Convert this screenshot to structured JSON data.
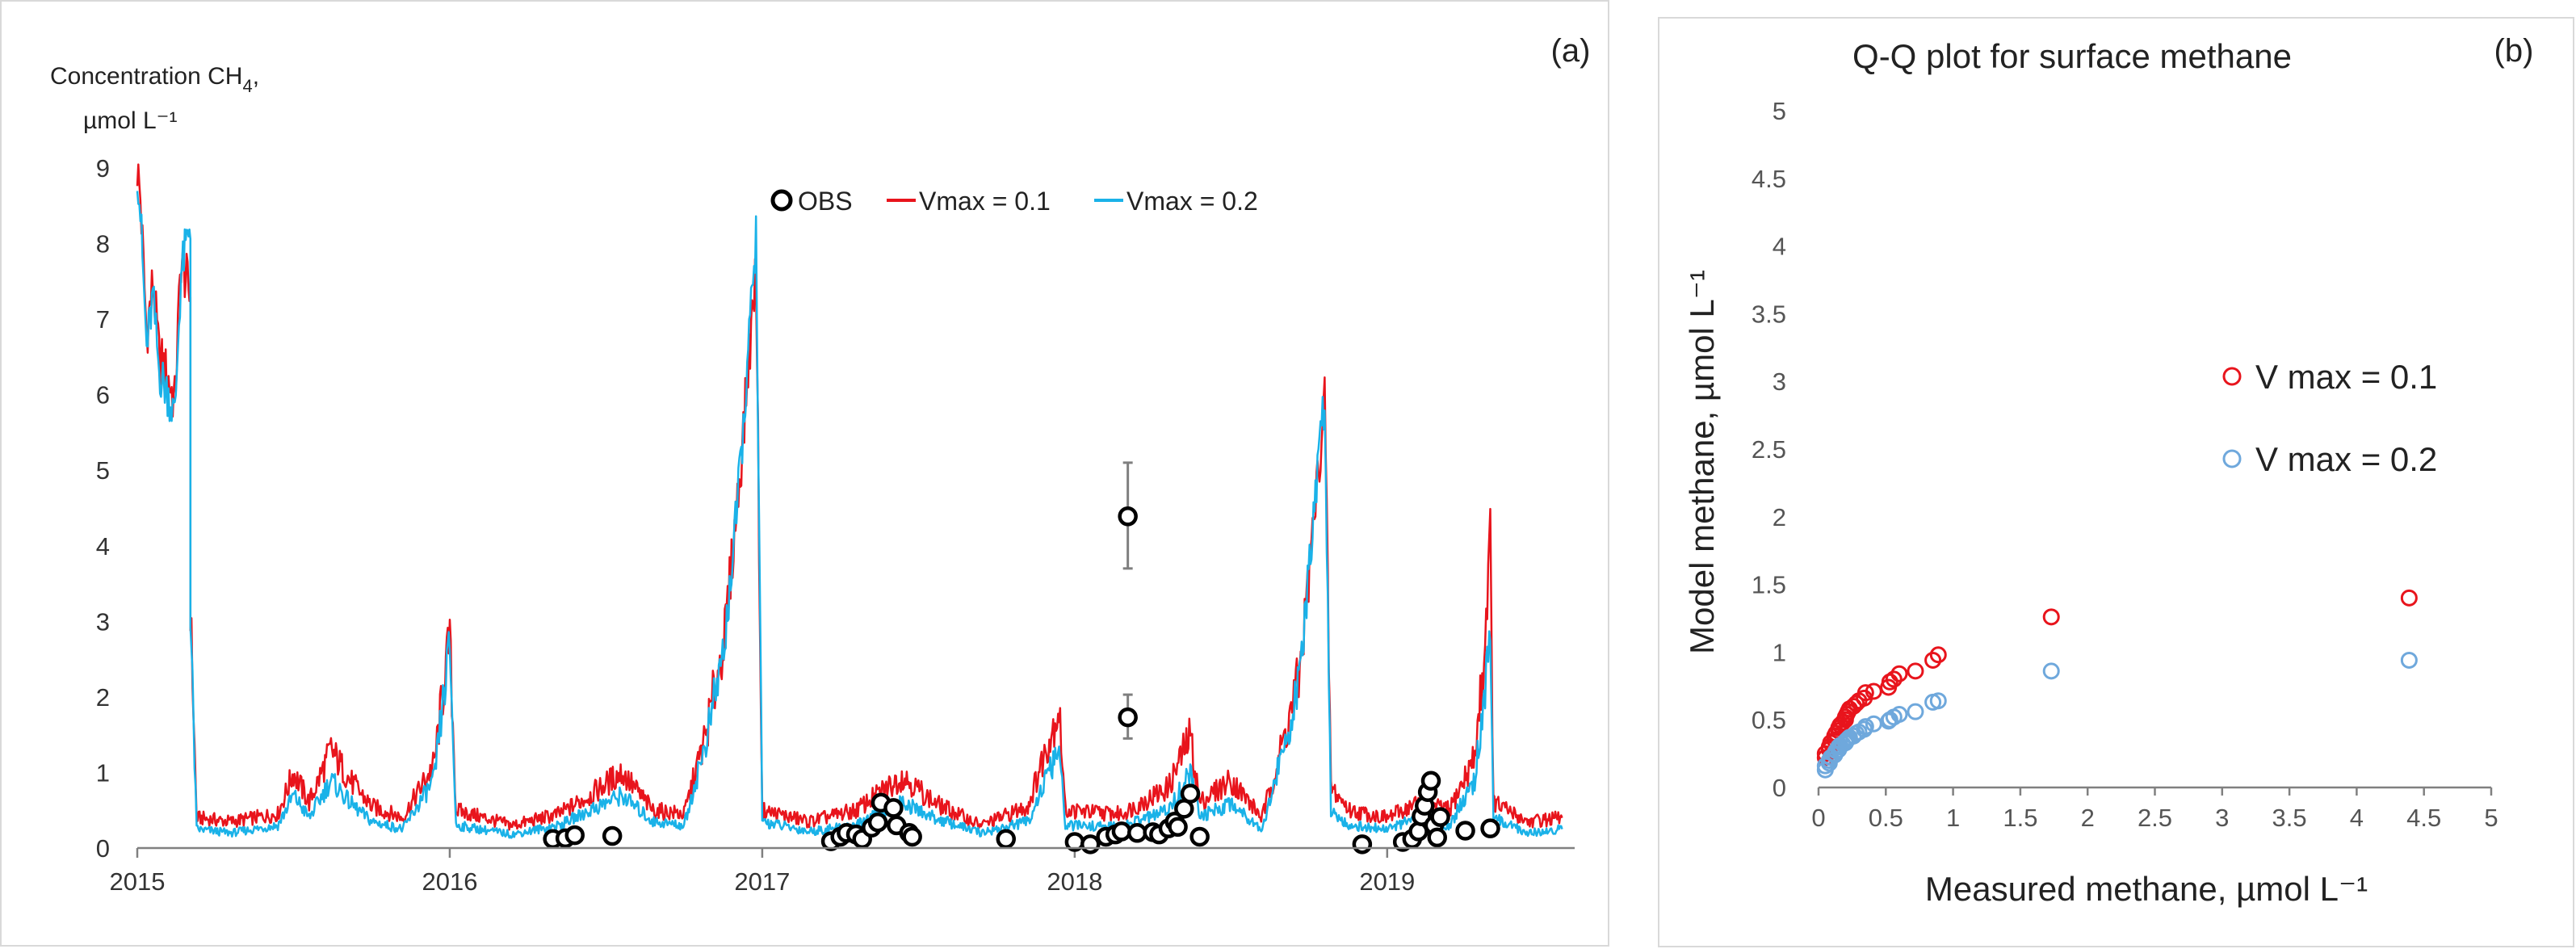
{
  "chart_data": [
    {
      "type": "line",
      "panel_label": "(a)",
      "title": "",
      "ylabel_line1": "Concentration CH",
      "ylabel_sub": "4",
      "ylabel_comma": ",",
      "ylabel_line2": "µmol L⁻¹",
      "xlabel": "",
      "ylim": [
        0,
        9
      ],
      "yticks": [
        0,
        1,
        2,
        3,
        4,
        5,
        6,
        7,
        8,
        9
      ],
      "xlim": [
        2015.0,
        2019.6
      ],
      "xticks": [
        2015,
        2016,
        2017,
        2018,
        2019
      ],
      "xtick_labels": [
        "2015",
        "2016",
        "2017",
        "2018",
        "2019"
      ],
      "grid": false,
      "legend_position": "top-center",
      "colors": {
        "OBS": "#000000",
        "vmax01": "#e8141c",
        "vmax02": "#1ab2e8",
        "errorbar": "#7f7f7f"
      },
      "series": [
        {
          "name": "OBS",
          "label": "OBS",
          "kind": "scatter",
          "points": [
            [
              2016.33,
              0.12
            ],
            [
              2016.37,
              0.13
            ],
            [
              2016.4,
              0.17
            ],
            [
              2016.52,
              0.16
            ],
            [
              2017.22,
              0.09
            ],
            [
              2017.25,
              0.15
            ],
            [
              2017.27,
              0.2
            ],
            [
              2017.3,
              0.18
            ],
            [
              2017.32,
              0.12
            ],
            [
              2017.35,
              0.27
            ],
            [
              2017.37,
              0.34
            ],
            [
              2017.38,
              0.6
            ],
            [
              2017.42,
              0.53
            ],
            [
              2017.43,
              0.3
            ],
            [
              2017.47,
              0.2
            ],
            [
              2017.48,
              0.15
            ],
            [
              2017.78,
              0.12
            ],
            [
              2018.0,
              0.08
            ],
            [
              2018.05,
              0.05
            ],
            [
              2018.1,
              0.15
            ],
            [
              2018.13,
              0.18
            ],
            [
              2018.15,
              0.22
            ],
            [
              2018.17,
              1.73
            ],
            [
              2018.17,
              4.39
            ],
            [
              2018.2,
              0.2
            ],
            [
              2018.25,
              0.21
            ],
            [
              2018.27,
              0.18
            ],
            [
              2018.3,
              0.26
            ],
            [
              2018.32,
              0.35
            ],
            [
              2018.33,
              0.28
            ],
            [
              2018.35,
              0.52
            ],
            [
              2018.37,
              0.72
            ],
            [
              2018.4,
              0.15
            ],
            [
              2018.92,
              0.05
            ],
            [
              2019.05,
              0.08
            ],
            [
              2019.08,
              0.12
            ],
            [
              2019.1,
              0.22
            ],
            [
              2019.11,
              0.42
            ],
            [
              2019.12,
              0.56
            ],
            [
              2019.13,
              0.74
            ],
            [
              2019.14,
              0.89
            ],
            [
              2019.15,
              0.3
            ],
            [
              2019.16,
              0.14
            ],
            [
              2019.17,
              0.41
            ],
            [
              2019.25,
              0.23
            ],
            [
              2019.33,
              0.26
            ]
          ],
          "errorbars": [
            {
              "x": 2018.17,
              "y": 4.39,
              "low": 3.7,
              "high": 5.1
            },
            {
              "x": 2018.17,
              "y": 1.73,
              "low": 1.45,
              "high": 2.03
            }
          ]
        },
        {
          "name": "Vmax = 0.1",
          "label": "Vmax = 0.1",
          "kind": "line",
          "keypoints": [
            [
              2015.0,
              9.0
            ],
            [
              2015.01,
              8.6
            ],
            [
              2015.03,
              6.8
            ],
            [
              2015.05,
              7.5
            ],
            [
              2015.07,
              6.5
            ],
            [
              2015.1,
              6.2
            ],
            [
              2015.12,
              5.9
            ],
            [
              2015.14,
              7.8
            ],
            [
              2015.17,
              7.3
            ],
            [
              2015.17,
              3.2
            ],
            [
              2015.19,
              0.4
            ],
            [
              2015.3,
              0.35
            ],
            [
              2015.45,
              0.45
            ],
            [
              2015.5,
              1.0
            ],
            [
              2015.55,
              0.6
            ],
            [
              2015.62,
              1.3
            ],
            [
              2015.68,
              0.9
            ],
            [
              2015.75,
              0.55
            ],
            [
              2015.85,
              0.4
            ],
            [
              2015.95,
              1.1
            ],
            [
              2016.0,
              2.8
            ],
            [
              2016.02,
              0.5
            ],
            [
              2016.2,
              0.3
            ],
            [
              2016.35,
              0.45
            ],
            [
              2016.45,
              0.7
            ],
            [
              2016.55,
              1.0
            ],
            [
              2016.65,
              0.5
            ],
            [
              2016.75,
              0.45
            ],
            [
              2016.82,
              1.5
            ],
            [
              2016.88,
              2.8
            ],
            [
              2016.93,
              5.0
            ],
            [
              2016.98,
              7.7
            ],
            [
              2017.0,
              0.5
            ],
            [
              2017.15,
              0.35
            ],
            [
              2017.3,
              0.5
            ],
            [
              2017.45,
              0.95
            ],
            [
              2017.55,
              0.6
            ],
            [
              2017.7,
              0.3
            ],
            [
              2017.85,
              0.55
            ],
            [
              2017.95,
              1.85
            ],
            [
              2017.97,
              0.5
            ],
            [
              2018.15,
              0.45
            ],
            [
              2018.3,
              0.8
            ],
            [
              2018.37,
              1.5
            ],
            [
              2018.4,
              0.6
            ],
            [
              2018.5,
              0.9
            ],
            [
              2018.6,
              0.4
            ],
            [
              2018.68,
              1.6
            ],
            [
              2018.72,
              2.3
            ],
            [
              2018.78,
              5.0
            ],
            [
              2018.8,
              6.0
            ],
            [
              2018.82,
              0.8
            ],
            [
              2018.88,
              0.5
            ],
            [
              2019.0,
              0.4
            ],
            [
              2019.1,
              0.6
            ],
            [
              2019.2,
              0.5
            ],
            [
              2019.28,
              1.2
            ],
            [
              2019.31,
              2.5
            ],
            [
              2019.33,
              4.2
            ],
            [
              2019.34,
              0.6
            ],
            [
              2019.45,
              0.35
            ],
            [
              2019.56,
              0.4
            ]
          ]
        },
        {
          "name": "Vmax = 0.2",
          "label": "Vmax = 0.2",
          "kind": "line",
          "keypoints": [
            [
              2015.0,
              9.0
            ],
            [
              2015.01,
              8.4
            ],
            [
              2015.03,
              6.6
            ],
            [
              2015.05,
              7.3
            ],
            [
              2015.07,
              6.3
            ],
            [
              2015.1,
              6.0
            ],
            [
              2015.12,
              5.7
            ],
            [
              2015.14,
              7.6
            ],
            [
              2015.17,
              8.3
            ],
            [
              2015.17,
              3.0
            ],
            [
              2015.19,
              0.25
            ],
            [
              2015.3,
              0.2
            ],
            [
              2015.45,
              0.3
            ],
            [
              2015.5,
              0.7
            ],
            [
              2015.55,
              0.4
            ],
            [
              2015.62,
              0.9
            ],
            [
              2015.68,
              0.6
            ],
            [
              2015.75,
              0.35
            ],
            [
              2015.85,
              0.25
            ],
            [
              2015.95,
              0.9
            ],
            [
              2016.0,
              2.7
            ],
            [
              2016.02,
              0.3
            ],
            [
              2016.2,
              0.18
            ],
            [
              2016.35,
              0.3
            ],
            [
              2016.45,
              0.5
            ],
            [
              2016.55,
              0.7
            ],
            [
              2016.65,
              0.35
            ],
            [
              2016.75,
              0.3
            ],
            [
              2016.82,
              1.4
            ],
            [
              2016.88,
              2.7
            ],
            [
              2016.93,
              5.0
            ],
            [
              2016.98,
              8.1
            ],
            [
              2017.0,
              0.35
            ],
            [
              2017.15,
              0.22
            ],
            [
              2017.3,
              0.3
            ],
            [
              2017.45,
              0.6
            ],
            [
              2017.55,
              0.4
            ],
            [
              2017.7,
              0.2
            ],
            [
              2017.85,
              0.35
            ],
            [
              2017.95,
              1.3
            ],
            [
              2017.97,
              0.3
            ],
            [
              2018.15,
              0.28
            ],
            [
              2018.3,
              0.5
            ],
            [
              2018.37,
              1.0
            ],
            [
              2018.4,
              0.4
            ],
            [
              2018.5,
              0.6
            ],
            [
              2018.6,
              0.25
            ],
            [
              2018.68,
              1.5
            ],
            [
              2018.72,
              2.2
            ],
            [
              2018.78,
              5.1
            ],
            [
              2018.8,
              6.0
            ],
            [
              2018.82,
              0.5
            ],
            [
              2018.88,
              0.3
            ],
            [
              2019.0,
              0.25
            ],
            [
              2019.1,
              0.4
            ],
            [
              2019.2,
              0.3
            ],
            [
              2019.28,
              0.9
            ],
            [
              2019.31,
              2.0
            ],
            [
              2019.33,
              2.7
            ],
            [
              2019.34,
              0.4
            ],
            [
              2019.45,
              0.2
            ],
            [
              2019.56,
              0.25
            ]
          ]
        }
      ]
    },
    {
      "type": "scatter",
      "panel_label": "(b)",
      "title": "Q-Q plot for surface methane",
      "xlabel": "Measured methane, µmol L⁻¹",
      "ylabel": "Model methane, µmol L⁻¹",
      "xlim": [
        0,
        5
      ],
      "ylim": [
        0,
        5
      ],
      "xticks": [
        0,
        0.5,
        1,
        1.5,
        2,
        2.5,
        3,
        3.5,
        4,
        4.5,
        5
      ],
      "yticks": [
        0,
        0.5,
        1,
        1.5,
        2,
        2.5,
        3,
        3.5,
        4,
        4.5,
        5
      ],
      "xtick_labels": [
        "0",
        "0.5",
        "1",
        "1.5",
        "2",
        "2.5",
        "3",
        "3.5",
        "4",
        "4.5",
        "5"
      ],
      "ytick_labels": [
        "0",
        "0.5",
        "1",
        "1.5",
        "2",
        "2.5",
        "3",
        "3.5",
        "4",
        "4.5",
        "5"
      ],
      "grid": false,
      "legend_position": "center-right",
      "series": [
        {
          "name": "V max = 0.1",
          "label": "V max = 0.1",
          "color": "#e8141c",
          "points": [
            [
              0.05,
              0.22
            ],
            [
              0.05,
              0.25
            ],
            [
              0.08,
              0.28
            ],
            [
              0.08,
              0.3
            ],
            [
              0.09,
              0.33
            ],
            [
              0.12,
              0.35
            ],
            [
              0.12,
              0.38
            ],
            [
              0.13,
              0.4
            ],
            [
              0.15,
              0.42
            ],
            [
              0.15,
              0.44
            ],
            [
              0.16,
              0.46
            ],
            [
              0.18,
              0.48
            ],
            [
              0.2,
              0.5
            ],
            [
              0.2,
              0.52
            ],
            [
              0.21,
              0.54
            ],
            [
              0.22,
              0.56
            ],
            [
              0.23,
              0.58
            ],
            [
              0.26,
              0.6
            ],
            [
              0.28,
              0.62
            ],
            [
              0.3,
              0.64
            ],
            [
              0.34,
              0.66
            ],
            [
              0.35,
              0.7
            ],
            [
              0.41,
              0.71
            ],
            [
              0.52,
              0.74
            ],
            [
              0.53,
              0.78
            ],
            [
              0.56,
              0.8
            ],
            [
              0.6,
              0.84
            ],
            [
              0.72,
              0.86
            ],
            [
              0.85,
              0.94
            ],
            [
              0.89,
              0.98
            ],
            [
              1.73,
              1.26
            ],
            [
              4.39,
              1.4
            ]
          ]
        },
        {
          "name": "V max = 0.2",
          "label": "V max = 0.2",
          "color": "#6fa8dc",
          "points": [
            [
              0.05,
              0.13
            ],
            [
              0.05,
              0.16
            ],
            [
              0.08,
              0.18
            ],
            [
              0.08,
              0.2
            ],
            [
              0.09,
              0.22
            ],
            [
              0.12,
              0.24
            ],
            [
              0.12,
              0.25
            ],
            [
              0.13,
              0.27
            ],
            [
              0.15,
              0.28
            ],
            [
              0.15,
              0.3
            ],
            [
              0.16,
              0.31
            ],
            [
              0.18,
              0.32
            ],
            [
              0.2,
              0.33
            ],
            [
              0.2,
              0.34
            ],
            [
              0.21,
              0.35
            ],
            [
              0.22,
              0.36
            ],
            [
              0.23,
              0.37
            ],
            [
              0.26,
              0.38
            ],
            [
              0.28,
              0.4
            ],
            [
              0.3,
              0.41
            ],
            [
              0.34,
              0.43
            ],
            [
              0.35,
              0.45
            ],
            [
              0.41,
              0.47
            ],
            [
              0.52,
              0.49
            ],
            [
              0.53,
              0.5
            ],
            [
              0.56,
              0.52
            ],
            [
              0.6,
              0.54
            ],
            [
              0.72,
              0.56
            ],
            [
              0.85,
              0.63
            ],
            [
              0.89,
              0.64
            ],
            [
              1.73,
              0.86
            ],
            [
              4.39,
              0.94
            ]
          ]
        }
      ]
    }
  ]
}
